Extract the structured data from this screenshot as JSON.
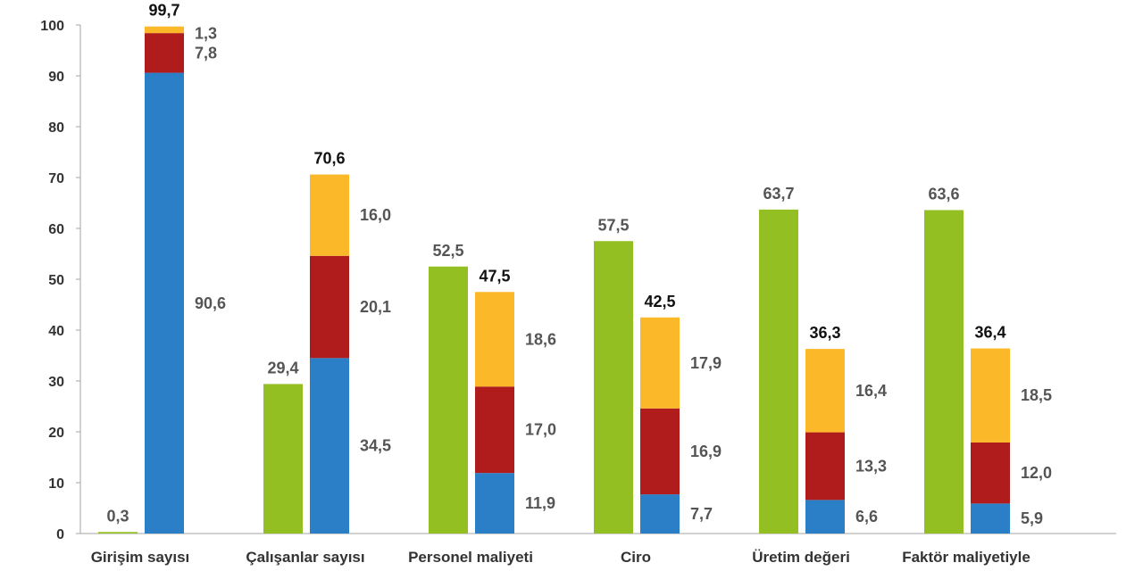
{
  "chart_data": {
    "type": "bar",
    "title": "",
    "xlabel": "",
    "ylabel": "",
    "ylim": [
      0,
      100
    ],
    "yticks": [
      "0",
      "10",
      "20",
      "30",
      "40",
      "50",
      "60",
      "70",
      "80",
      "90",
      "100"
    ],
    "grid": false,
    "colors": {
      "green": "#93bf22",
      "blue": "#2a7fc6",
      "red": "#b01b1b",
      "yellow": "#fbb92a"
    },
    "groups": [
      {
        "category": "Girişim sayısı",
        "green": {
          "value": 0.3,
          "label": "0,3"
        },
        "stack": {
          "segments": [
            {
              "series": "blue",
              "value": 90.6,
              "label": "90,6"
            },
            {
              "series": "red",
              "value": 7.8,
              "label": "7,8"
            },
            {
              "series": "yellow",
              "value": 1.3,
              "label": "1,3"
            }
          ],
          "total": 99.7,
          "total_label": "99,7"
        }
      },
      {
        "category": "Çalışanlar sayısı",
        "green": {
          "value": 29.4,
          "label": "29,4"
        },
        "stack": {
          "segments": [
            {
              "series": "blue",
              "value": 34.5,
              "label": "34,5"
            },
            {
              "series": "red",
              "value": 20.1,
              "label": "20,1"
            },
            {
              "series": "yellow",
              "value": 16.0,
              "label": "16,0"
            }
          ],
          "total": 70.6,
          "total_label": "70,6"
        }
      },
      {
        "category": "Personel maliyeti",
        "green": {
          "value": 52.5,
          "label": "52,5"
        },
        "stack": {
          "segments": [
            {
              "series": "blue",
              "value": 11.9,
              "label": "11,9"
            },
            {
              "series": "red",
              "value": 17.0,
              "label": "17,0"
            },
            {
              "series": "yellow",
              "value": 18.6,
              "label": "18,6"
            }
          ],
          "total": 47.5,
          "total_label": "47,5"
        }
      },
      {
        "category": "Ciro",
        "green": {
          "value": 57.5,
          "label": "57,5"
        },
        "stack": {
          "segments": [
            {
              "series": "blue",
              "value": 7.7,
              "label": "7,7"
            },
            {
              "series": "red",
              "value": 16.9,
              "label": "16,9"
            },
            {
              "series": "yellow",
              "value": 17.9,
              "label": "17,9"
            }
          ],
          "total": 42.5,
          "total_label": "42,5"
        }
      },
      {
        "category": "Üretim değeri",
        "green": {
          "value": 63.7,
          "label": "63,7"
        },
        "stack": {
          "segments": [
            {
              "series": "blue",
              "value": 6.6,
              "label": "6,6"
            },
            {
              "series": "red",
              "value": 13.3,
              "label": "13,3"
            },
            {
              "series": "yellow",
              "value": 16.4,
              "label": "16,4"
            }
          ],
          "total": 36.3,
          "total_label": "36,3"
        }
      },
      {
        "category": "Faktör maliyetiyle",
        "green": {
          "value": 63.6,
          "label": "63,6"
        },
        "stack": {
          "segments": [
            {
              "series": "blue",
              "value": 5.9,
              "label": "5,9"
            },
            {
              "series": "red",
              "value": 12.0,
              "label": "12,0"
            },
            {
              "series": "yellow",
              "value": 18.5,
              "label": "18,5"
            }
          ],
          "total": 36.4,
          "total_label": "36,4"
        }
      }
    ]
  }
}
